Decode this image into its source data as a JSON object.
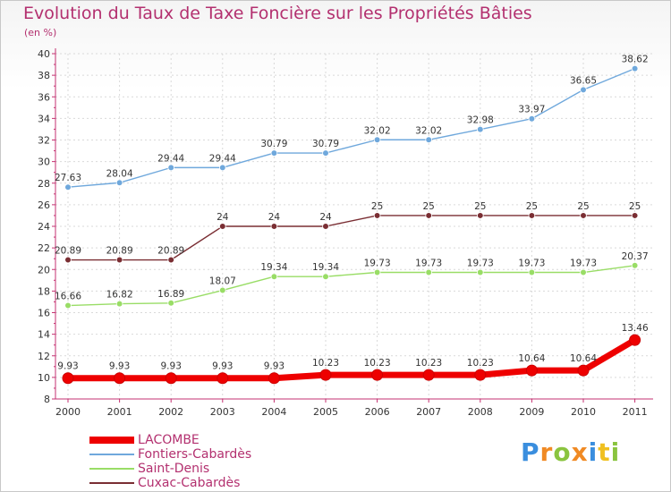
{
  "chart_data": {
    "type": "line",
    "title": "Evolution du Taux de Taxe Foncière sur les Propriétés Bâties",
    "unit_label": "(en %)",
    "xlabel": "",
    "ylabel": "",
    "x": [
      "2000",
      "2001",
      "2002",
      "2003",
      "2004",
      "2005",
      "2006",
      "2007",
      "2008",
      "2009",
      "2010",
      "2011"
    ],
    "ylim": [
      8,
      40
    ],
    "yticks": [
      8,
      10,
      12,
      14,
      16,
      18,
      20,
      22,
      24,
      26,
      28,
      30,
      32,
      34,
      36,
      38,
      40
    ],
    "grid": true,
    "legend_position": "bottom-left",
    "series": [
      {
        "name": "LACOMBE",
        "color": "#ee0000",
        "values": [
          9.93,
          9.93,
          9.93,
          9.93,
          9.93,
          10.23,
          10.23,
          10.23,
          10.23,
          10.64,
          10.64,
          13.46
        ],
        "labels": [
          "9.93",
          "9.93",
          "9.93",
          "9.93",
          "9.93",
          "10.23",
          "10.23",
          "10.23",
          "10.23",
          "10.64",
          "10.64",
          "13.46"
        ]
      },
      {
        "name": "Fontiers-Cabardès",
        "color": "#6fa8dc",
        "values": [
          27.63,
          28.04,
          29.44,
          29.44,
          30.79,
          30.79,
          32.02,
          32.02,
          32.98,
          33.97,
          36.65,
          38.62
        ],
        "labels": [
          "27.63",
          "28.04",
          "29.44",
          "29.44",
          "30.79",
          "30.79",
          "32.02",
          "32.02",
          "32.98",
          "33.97",
          "36.65",
          "38.62"
        ]
      },
      {
        "name": "Saint-Denis",
        "color": "#99dd66",
        "values": [
          16.66,
          16.82,
          16.89,
          18.07,
          19.34,
          19.34,
          19.73,
          19.73,
          19.73,
          19.73,
          19.73,
          20.37
        ],
        "labels": [
          "16.66",
          "16.82",
          "16.89",
          "18.07",
          "19.34",
          "19.34",
          "19.73",
          "19.73",
          "19.73",
          "19.73",
          "19.73",
          "20.37"
        ]
      },
      {
        "name": "Cuxac-Cabardès",
        "color": "#7a2e33",
        "values": [
          20.89,
          20.89,
          20.89,
          24,
          24,
          24,
          25,
          25,
          25,
          25,
          25,
          25
        ],
        "labels": [
          "20.89",
          "20.89",
          "20.89",
          "24",
          "24",
          "24",
          "25",
          "25",
          "25",
          "25",
          "25",
          "25"
        ]
      }
    ]
  },
  "logo": {
    "letters": [
      "P",
      "r",
      "o",
      "x",
      "i",
      "t",
      "i"
    ],
    "colors": [
      "#3a8ede",
      "#f08a24",
      "#8ac43f",
      "#f08a24",
      "#3a8ede",
      "#f0c020",
      "#8ac43f"
    ]
  }
}
